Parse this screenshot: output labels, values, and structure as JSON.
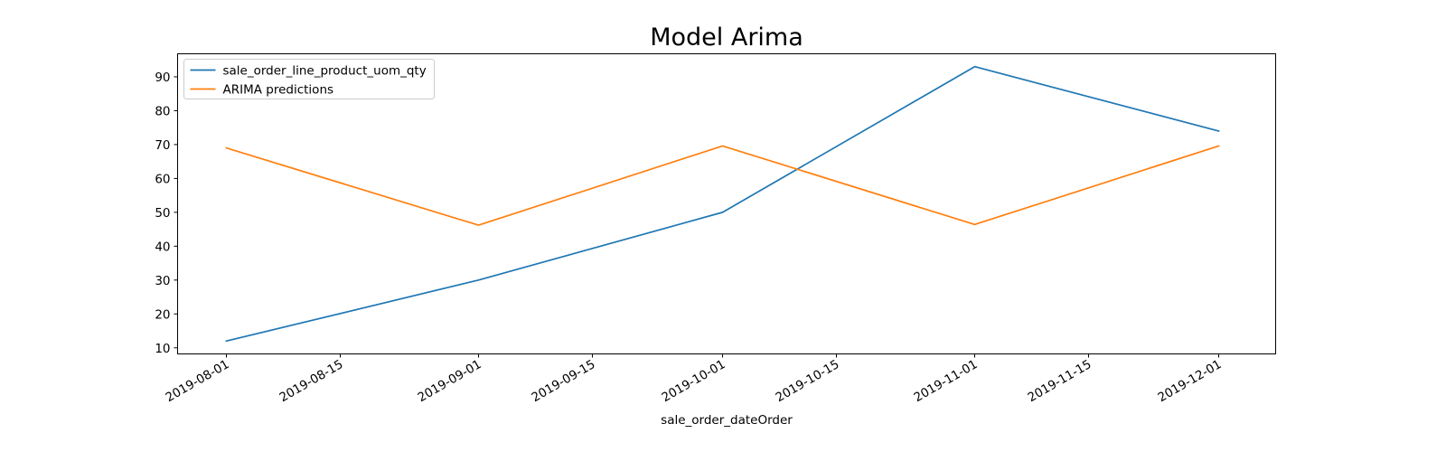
{
  "chart_data": {
    "type": "line",
    "title": "Model Arima",
    "xlabel": "sale_order_dateOrder",
    "ylabel": "",
    "x": [
      "2019-08-01",
      "2019-09-01",
      "2019-10-01",
      "2019-11-01",
      "2019-12-01"
    ],
    "series": [
      {
        "name": "sale_order_line_product_uom_qty",
        "color": "#1f77b4",
        "values": [
          12,
          30,
          50,
          93,
          74
        ]
      },
      {
        "name": "ARIMA predictions",
        "color": "#ff7f0e",
        "values": [
          69,
          46.2,
          69.6,
          46.4,
          69.6
        ]
      }
    ],
    "xlim": [
      "2019-07-26",
      "2019-12-08"
    ],
    "ylim": [
      8.2,
      96.8
    ],
    "yticks": [
      10,
      20,
      30,
      40,
      50,
      60,
      70,
      80,
      90
    ],
    "xticks": [
      "2019-08-01",
      "2019-08-15",
      "2019-09-01",
      "2019-09-15",
      "2019-10-01",
      "2019-10-15",
      "2019-11-01",
      "2019-11-15",
      "2019-12-01"
    ],
    "grid": false,
    "legend_position": "top-left"
  }
}
